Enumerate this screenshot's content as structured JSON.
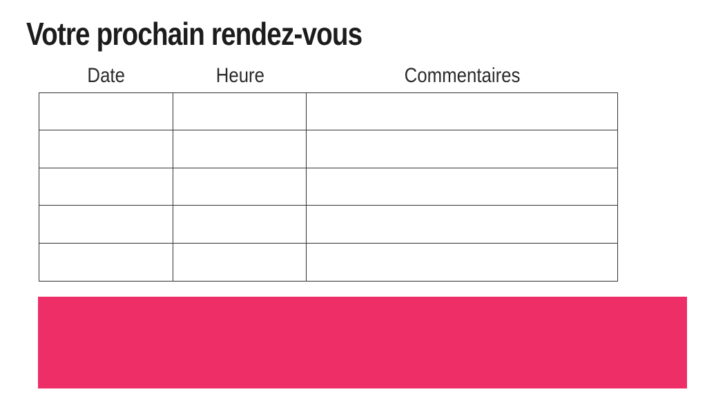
{
  "page": {
    "title": "Votre prochain rendez-vous",
    "background_color": "#ffffff"
  },
  "appointments_table": {
    "headers": [
      "Date",
      "Heure",
      "Commentaires"
    ],
    "rows": [
      [
        "",
        "",
        ""
      ],
      [
        "",
        "",
        ""
      ],
      [
        "",
        "",
        ""
      ],
      [
        "",
        "",
        ""
      ],
      [
        "",
        "",
        ""
      ]
    ]
  },
  "banner": {
    "color": "#ed2e67"
  },
  "colors": {
    "accent_pink": "#ed2e67",
    "table_border": "#303030",
    "title_text": "#1c1c1c",
    "header_text": "#2a2a2a"
  }
}
